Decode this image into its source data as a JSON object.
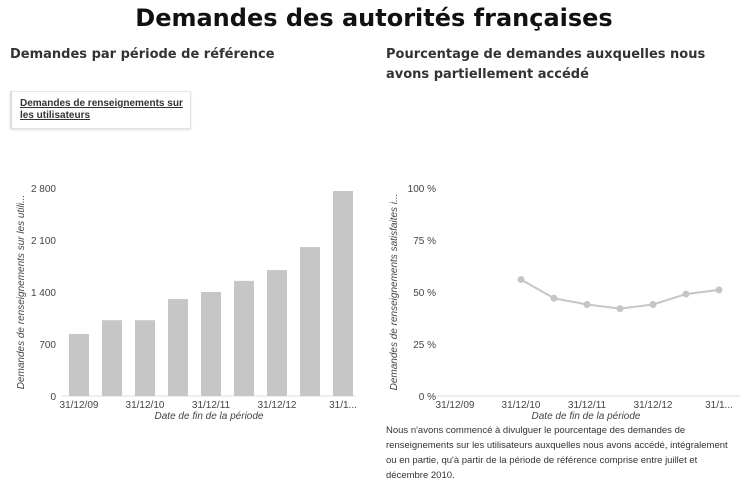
{
  "title": "Demandes des autorités françaises",
  "left_heading": "Demandes par période de référence",
  "right_heading": "Pourcentage de demandes auxquelles nous avons partiellement accédé",
  "legend_link": "Demandes de renseignements sur les utilisateurs",
  "note": "Nous n'avons commencé à divulguer le pourcentage des demandes de renseignements sur les utilisateurs auxquelles nous avons accédé, intégralement ou en partie, qu'à partir de la période de référence comprise entre juillet et décembre 2010.",
  "chart_data": [
    {
      "type": "bar",
      "title": "Demandes par période de référence",
      "xlabel": "Date de fin de la période",
      "ylabel": "Demandes de renseignements sur les utili...",
      "xticks": [
        "31/12/09",
        "31/12/10",
        "31/12/11",
        "31/12/12",
        "31/1..."
      ],
      "yticks": [
        "0",
        "700",
        "1 400",
        "2 100",
        "2 800"
      ],
      "ylim": [
        0,
        2800
      ],
      "values": [
        835,
        1020,
        1020,
        1305,
        1400,
        1550,
        1695,
        2005,
        2760
      ],
      "color": "#c6c6c6"
    },
    {
      "type": "line",
      "title": "Pourcentage de demandes auxquelles nous avons partiellement accédé",
      "xlabel": "Date de fin de la période",
      "ylabel": "Demandes de renseignements satisfaites i...",
      "xticks": [
        "31/12/09",
        "31/12/10",
        "31/12/11",
        "31/12/12",
        "31/1..."
      ],
      "yticks": [
        "0 %",
        "25 %",
        "50 %",
        "75 %",
        "100 %"
      ],
      "ylim": [
        0,
        100
      ],
      "values": [
        null,
        null,
        56,
        47,
        44,
        42,
        44,
        49,
        51
      ],
      "color": "#c6c6c6"
    }
  ]
}
